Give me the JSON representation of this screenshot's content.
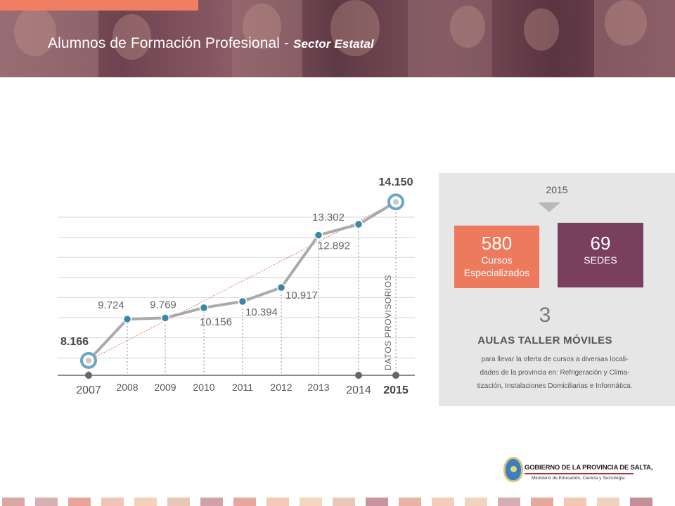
{
  "header": {
    "title": "Alumnos de Formación Profesional - ",
    "title_sub": "Sector Estatal"
  },
  "chart_data": {
    "type": "line",
    "categories": [
      "2007",
      "2008",
      "2009",
      "2010",
      "2011",
      "2012",
      "2013",
      "2014",
      "2015"
    ],
    "values": [
      8166,
      9724,
      9769,
      10156,
      10394,
      10917,
      12892,
      13302,
      14150
    ],
    "value_labels": [
      "8.166",
      "9.724",
      "9.769",
      "10.156",
      "10.394",
      "10.917",
      "12.892",
      "13.302",
      "14.150"
    ],
    "trendline": {
      "from": "2007",
      "to": "2015"
    },
    "annotation": "DATOS PROVISORIOS",
    "ylim": [
      7500,
      14500
    ],
    "grid": true,
    "colors": {
      "line": "#aaaaaa",
      "marker": "#3d86ab",
      "trend": "#e07a5f"
    }
  },
  "panel": {
    "year": "2015",
    "cursos": {
      "value": "580",
      "label_line1": "Cursos",
      "label_line2": "Especializados"
    },
    "sedes": {
      "value": "69",
      "label": "SEDES"
    },
    "aulas_count": "3",
    "aulas_title": "AULAS TALLER MÓVILES",
    "desc_line1": "para llevar la oferta de cursos a diversas locali-",
    "desc_line2": "dades de la provincia en: Refrigeración y Clima-",
    "desc_line3": "tización, Instalaciones Domiciliarias e Informática."
  },
  "logo": {
    "name": "GOBIERNO DE LA PROVINCIA DE SALTA,",
    "ministry": "Ministerio de Educación, Ciencia y Tecnología"
  }
}
